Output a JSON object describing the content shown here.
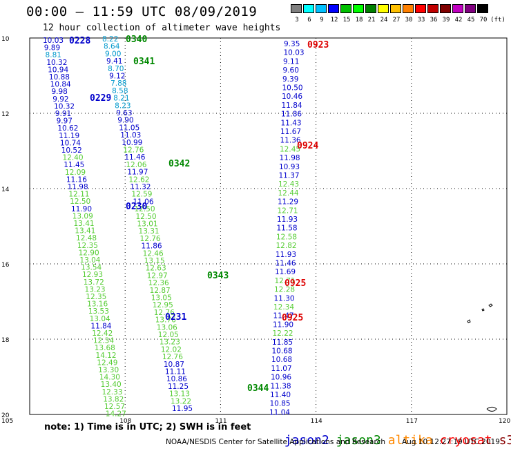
{
  "header": {
    "title": "00:00 – 11:59 UTC 08/09/2019",
    "subtitle": "12 hour collection of altimeter wave heights"
  },
  "colorbar": {
    "labels": [
      "3",
      "6",
      "9",
      "12",
      "15",
      "18",
      "21",
      "24",
      "27",
      "30",
      "33",
      "36",
      "39",
      "42",
      "45",
      "70"
    ],
    "unit": "(ft)",
    "colors": [
      "#808080",
      "#00ffff",
      "#00c0ff",
      "#0000ff",
      "#00c000",
      "#00ff00",
      "#008000",
      "#ffff00",
      "#ffc000",
      "#ff8000",
      "#ff0000",
      "#c00000",
      "#800000",
      "#c000c0",
      "#800080",
      "#000000"
    ]
  },
  "axes": {
    "x_ticks": [
      "105",
      "108",
      "111",
      "114",
      "117",
      "120"
    ],
    "y_ticks": [
      "10",
      "12",
      "14",
      "16",
      "18",
      "20"
    ]
  },
  "colors": {
    "jason2": "#0000cc",
    "jason3": "#008800",
    "altika": "#ff8800",
    "cryosat": "#ff0000",
    "s3a": "#880000",
    "blue": "#0000cc",
    "cyan": "#0099cc",
    "lightgreen": "#55cc33",
    "red": "#dd0000"
  },
  "passes": [
    {
      "label": "0228",
      "color": "blue"
    },
    {
      "label": "0340",
      "color": "green"
    },
    {
      "label": "0341",
      "color": "green"
    },
    {
      "label": "0229",
      "color": "blue"
    },
    {
      "label": "0342",
      "color": "green"
    },
    {
      "label": "0230",
      "color": "blue"
    },
    {
      "label": "0343",
      "color": "green"
    },
    {
      "label": "0231",
      "color": "blue"
    },
    {
      "label": "0344",
      "color": "green"
    },
    {
      "label": "0923",
      "color": "red"
    },
    {
      "label": "0924",
      "color": "red"
    },
    {
      "label": "0925",
      "color": "red"
    },
    {
      "label": "0925",
      "color": "red"
    }
  ],
  "tracks": [
    {
      "name": "track-a",
      "values": [
        "10.03",
        "9.89",
        "8.81",
        "10.32",
        "10.94",
        "10.88",
        "10.84",
        "9.98",
        "9.92",
        "10.32",
        "9.91",
        "9.97",
        "10.62",
        "11.19",
        "10.74",
        "10.52",
        "12.40",
        "11.45",
        "12.09",
        "11.16",
        "11.98",
        "12.11",
        "12.50",
        "11.90",
        "13.09",
        "13.41",
        "13.41",
        "12.48",
        "12.35",
        "12.90",
        "13.04",
        "13.54",
        "12.93",
        "13.72",
        "13.23",
        "12.35",
        "13.16",
        "13.53",
        "13.04",
        "11.84",
        "12.42",
        "12.34",
        "13.68",
        "14.12",
        "12.49",
        "13.30",
        "14.30",
        "13.40",
        "12.33",
        "13.82",
        "12.57",
        "14.27"
      ],
      "colors": [
        "b",
        "b",
        "c",
        "b",
        "b",
        "b",
        "b",
        "b",
        "b",
        "b",
        "b",
        "b",
        "b",
        "b",
        "b",
        "b",
        "g",
        "b",
        "g",
        "b",
        "b",
        "g",
        "g",
        "b",
        "g",
        "g",
        "g",
        "g",
        "g",
        "g",
        "g",
        "g",
        "g",
        "g",
        "g",
        "g",
        "g",
        "g",
        "g",
        "b",
        "g",
        "g",
        "g",
        "g",
        "g",
        "g",
        "g",
        "g",
        "g",
        "g",
        "g",
        "g"
      ]
    },
    {
      "name": "track-b",
      "values": [
        "8.22",
        "8.64",
        "9.00",
        "9.41",
        "8.70",
        "9.12",
        "7.88",
        "8.58",
        "8.21",
        "8.23",
        "9.63",
        "9.90",
        "11.05",
        "11.03",
        "10.99",
        "12.76",
        "11.46",
        "12.06",
        "11.97",
        "12.62",
        "11.32",
        "12.59",
        "11.06",
        "12.50",
        "12.50",
        "13.01",
        "13.31",
        "12.76",
        "11.86",
        "12.46",
        "13.15",
        "12.63",
        "12.97",
        "12.36",
        "12.87",
        "13.05",
        "12.95",
        "12.76",
        "13.76",
        "13.06",
        "12.05",
        "13.23",
        "12.02",
        "12.76",
        "10.87",
        "11.11",
        "10.86",
        "11.25",
        "13.13",
        "13.22",
        "11.95"
      ],
      "colors": [
        "c",
        "c",
        "c",
        "b",
        "c",
        "b",
        "c",
        "c",
        "c",
        "c",
        "b",
        "b",
        "b",
        "b",
        "b",
        "g",
        "b",
        "g",
        "b",
        "g",
        "b",
        "g",
        "b",
        "g",
        "g",
        "g",
        "g",
        "g",
        "b",
        "g",
        "g",
        "g",
        "g",
        "g",
        "g",
        "g",
        "g",
        "g",
        "g",
        "g",
        "g",
        "g",
        "g",
        "g",
        "b",
        "b",
        "b",
        "b",
        "g",
        "g",
        "b"
      ]
    },
    {
      "name": "track-c",
      "values": [
        "9.35",
        "10.03",
        "9.11",
        "9.60",
        "9.39",
        "10.50",
        "10.46",
        "11.84",
        "11.86",
        "11.43",
        "11.67",
        "11.36",
        "12.45",
        "11.98",
        "10.93",
        "11.37",
        "12.43",
        "12.44",
        "11.29",
        "12.71",
        "11.93",
        "11.58",
        "12.58",
        "12.82",
        "11.93",
        "11.46",
        "11.69",
        "12.71",
        "12.28",
        "11.30",
        "12.34",
        "11.47",
        "11.90",
        "12.22",
        "11.85",
        "10.68",
        "10.68",
        "11.07",
        "10.96",
        "11.38",
        "11.40",
        "10.85",
        "11.04"
      ],
      "colors": [
        "b",
        "b",
        "b",
        "b",
        "b",
        "b",
        "b",
        "b",
        "b",
        "b",
        "b",
        "b",
        "g",
        "b",
        "b",
        "b",
        "g",
        "g",
        "b",
        "g",
        "b",
        "b",
        "g",
        "g",
        "b",
        "b",
        "b",
        "g",
        "g",
        "b",
        "g",
        "b",
        "b",
        "g",
        "b",
        "b",
        "b",
        "b",
        "b",
        "b",
        "b",
        "b",
        "b"
      ]
    }
  ],
  "note": "note: 1) Time is in UTC; 2) SWH is in feet",
  "legend": [
    "jason2",
    "jason3",
    "altika",
    "cryosat",
    "s3a"
  ],
  "footer": {
    "credit": "NOAA/NESDIS Center for Satellite Applications and Research",
    "timestamp": "Aug 10 12:27:19 UTC 2019"
  }
}
